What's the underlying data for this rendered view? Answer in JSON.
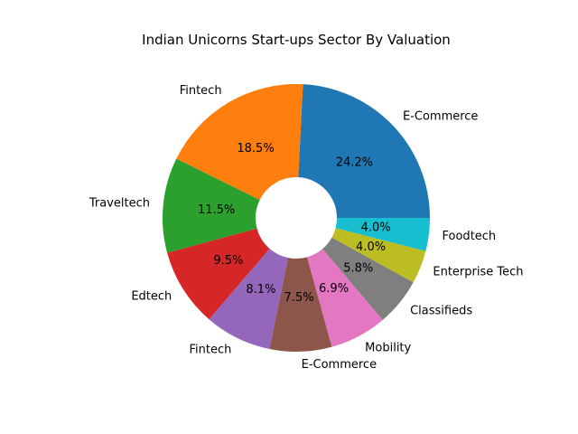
{
  "chart_data": {
    "type": "pie",
    "title": "Indian Unicorns Start-ups Sector By Valuation",
    "donut": true,
    "start_angle_deg": 0,
    "direction": "counterclockwise",
    "slices": [
      {
        "label": "E-Commerce",
        "percent": 24.2,
        "pct_text": "24.2%",
        "color": "#1f77b4"
      },
      {
        "label": "Fintech",
        "percent": 18.5,
        "pct_text": "18.5%",
        "color": "#ff7f0e"
      },
      {
        "label": "Traveltech",
        "percent": 11.5,
        "pct_text": "11.5%",
        "color": "#2ca02c"
      },
      {
        "label": "Edtech",
        "percent": 9.5,
        "pct_text": "9.5%",
        "color": "#d62728"
      },
      {
        "label": "Fintech",
        "percent": 8.1,
        "pct_text": "8.1%",
        "color": "#9467bd"
      },
      {
        "label": "E-Commerce",
        "percent": 7.5,
        "pct_text": "7.5%",
        "color": "#8c564b"
      },
      {
        "label": "Mobility",
        "percent": 6.9,
        "pct_text": "6.9%",
        "color": "#e377c2"
      },
      {
        "label": "Classifieds",
        "percent": 5.8,
        "pct_text": "5.8%",
        "color": "#7f7f7f"
      },
      {
        "label": "Enterprise Tech",
        "percent": 4.0,
        "pct_text": "4.0%",
        "color": "#bcbd22"
      },
      {
        "label": "Foodtech",
        "percent": 4.0,
        "pct_text": "4.0%",
        "color": "#17becf"
      }
    ]
  }
}
